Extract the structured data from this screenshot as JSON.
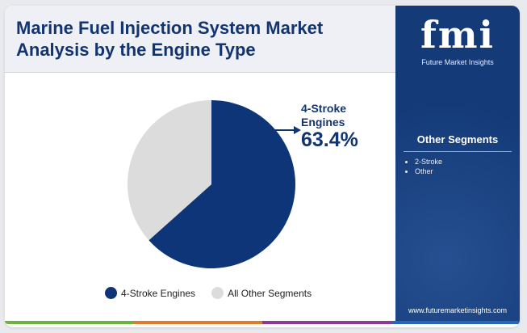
{
  "title": "Marine Fuel Injection System Market Analysis by the Engine Type",
  "chart_data": {
    "type": "pie",
    "slices": [
      {
        "label": "4-Stroke Engines",
        "value": 63.4,
        "color": "#0d3577"
      },
      {
        "label": "All Other Segments",
        "value": 36.6,
        "color": "#dcdcdc"
      }
    ],
    "callout": {
      "label": "4-Stroke Engines",
      "value": "63.4%"
    }
  },
  "legend": [
    {
      "label": "4-Stroke Engines",
      "color": "#0d3577"
    },
    {
      "label": "All Other Segments",
      "color": "#dcdcdc"
    }
  ],
  "sidebar": {
    "logo": "fmi",
    "logo_sub": "Future Market Insights",
    "segments_title": "Other Segments",
    "segments": [
      "2-Stroke",
      "Other"
    ],
    "website": "www.futuremarketinsights.com"
  },
  "bottom_colors": [
    "#6bb33f",
    "#e07a2e",
    "#8a3c94",
    "#2a66b8"
  ]
}
